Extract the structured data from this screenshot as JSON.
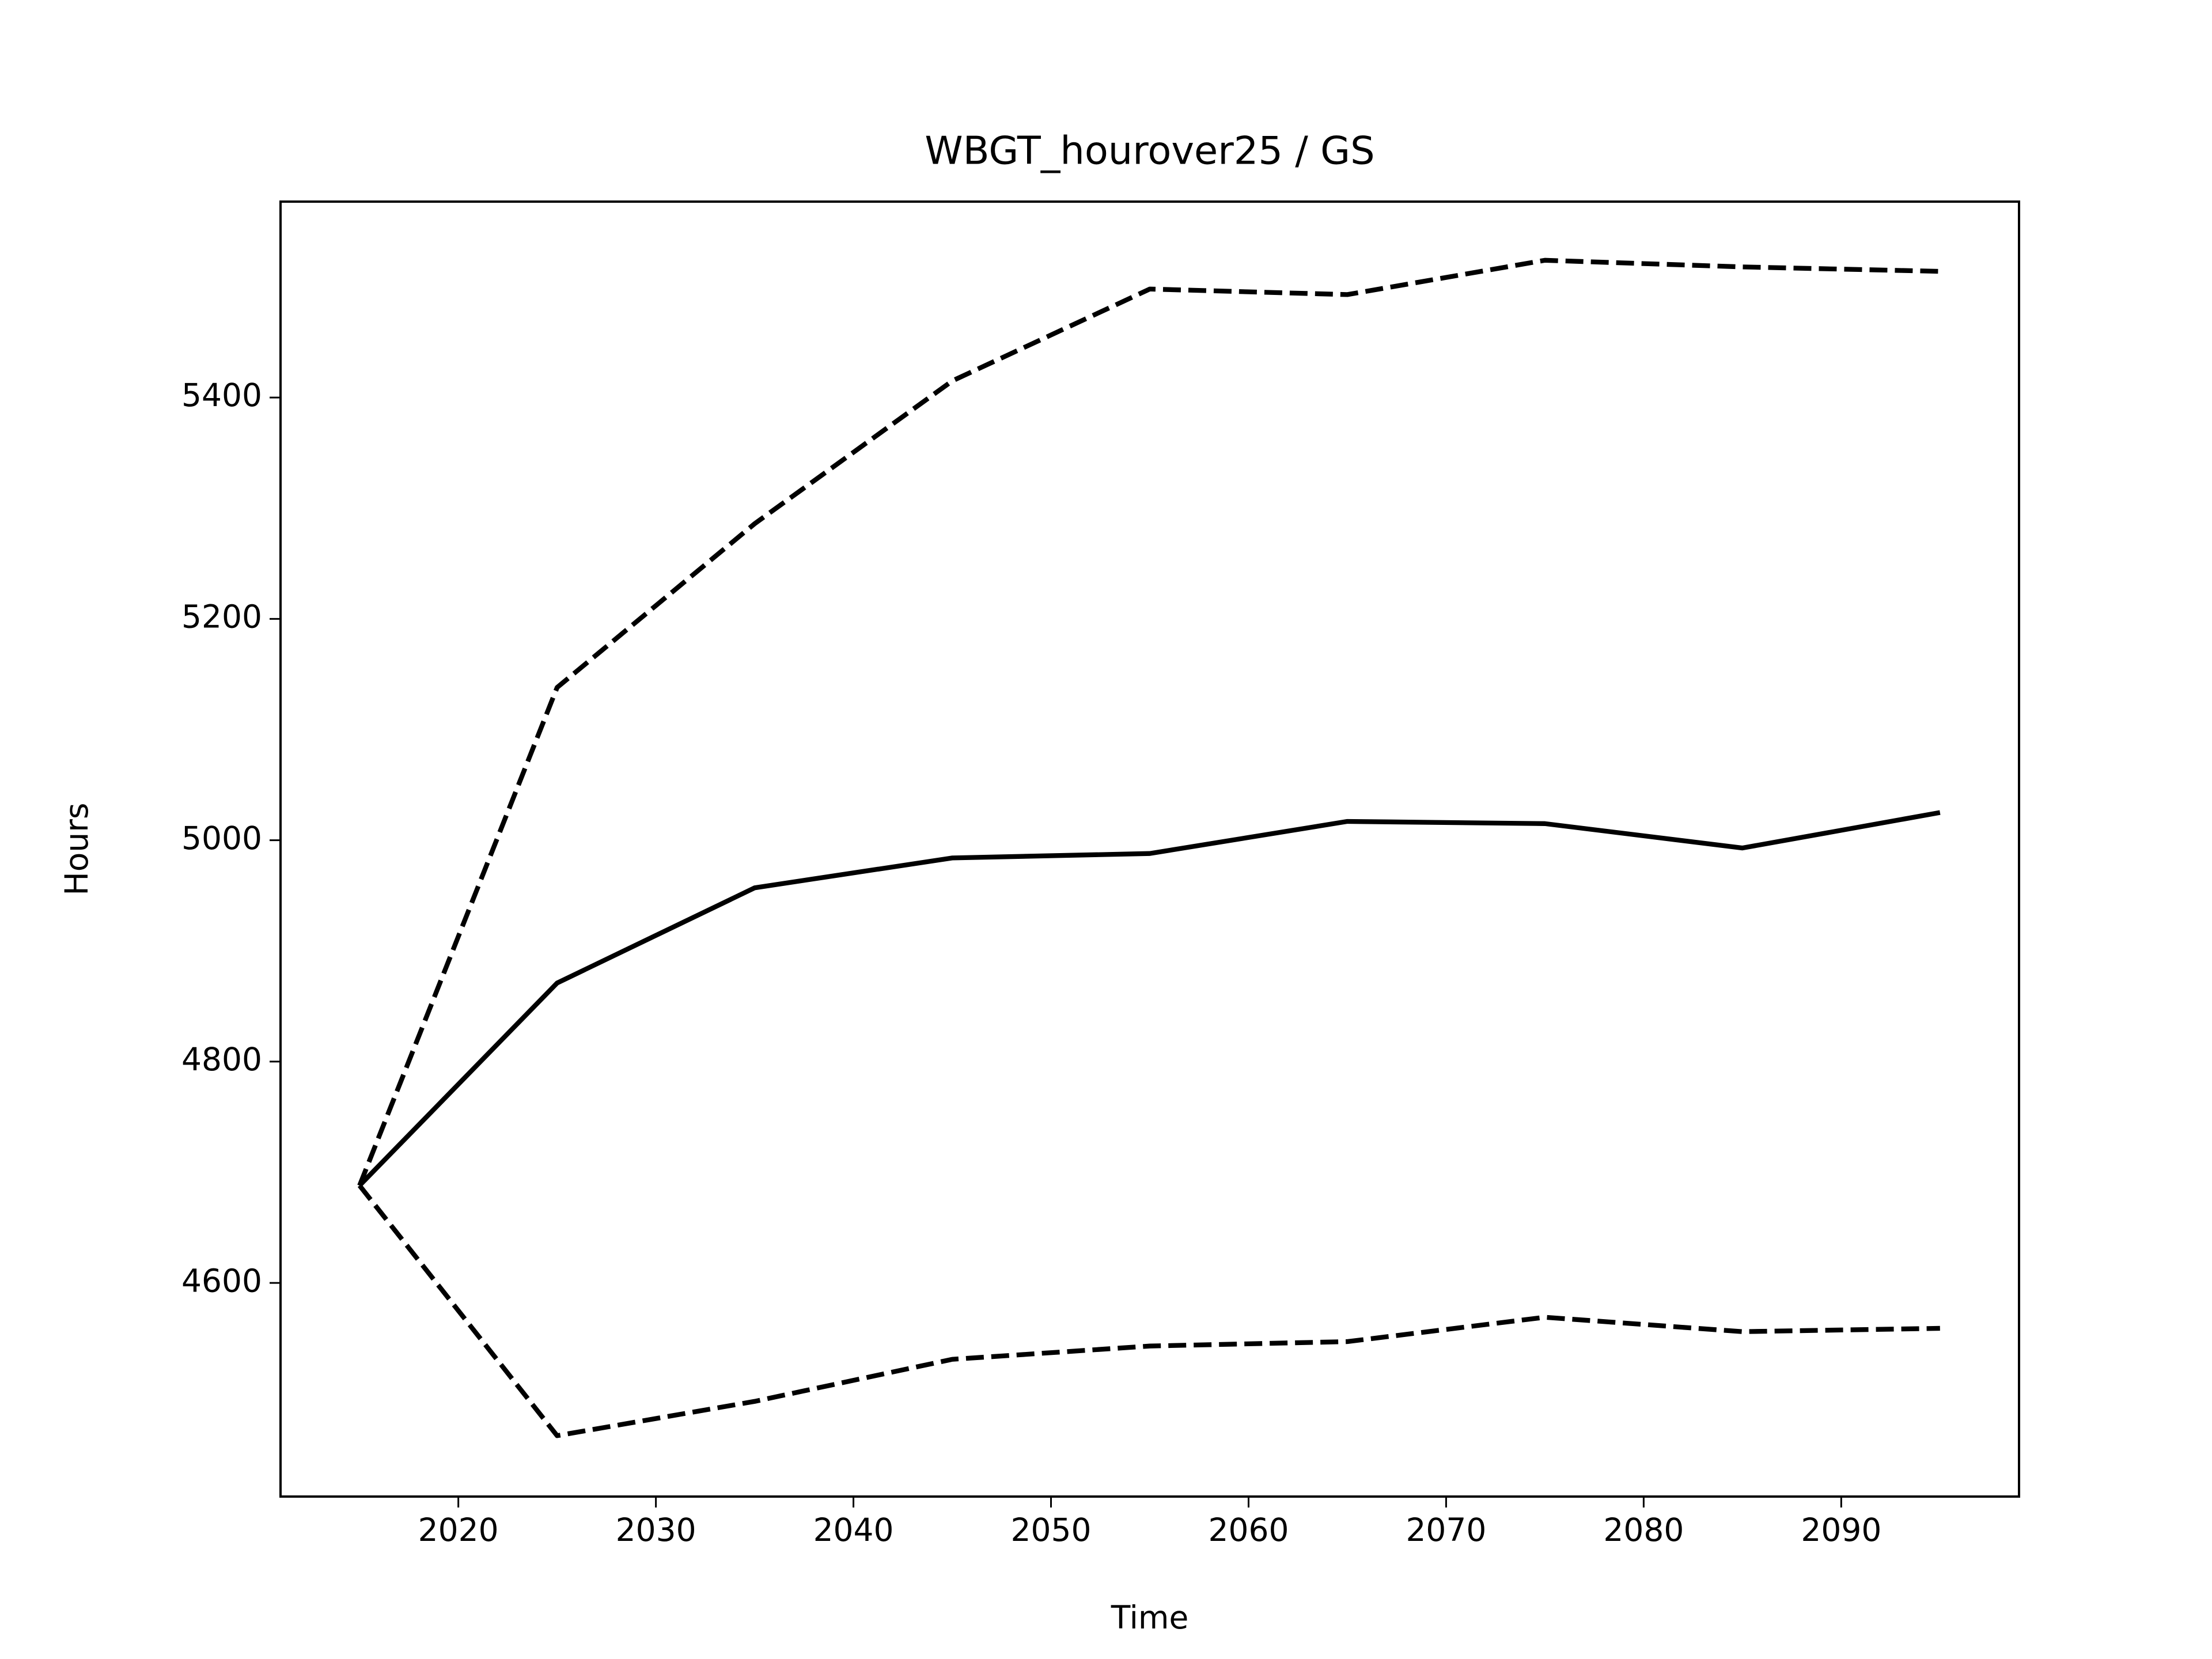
{
  "chart_data": {
    "type": "line",
    "title": "WBGT_hourover25 / GS",
    "x_label": "Time",
    "y_label": "Hours",
    "x": [
      2015,
      2025,
      2035,
      2045,
      2055,
      2065,
      2075,
      2085,
      2095
    ],
    "series": [
      {
        "color": "#000000",
        "style": "solid",
        "values": [
          4688,
          4871,
          4957,
          4984,
          4988,
          5017,
          5015,
          4993,
          5025
        ]
      },
      {
        "color": "#000000",
        "style": "dashed",
        "values": [
          4688,
          5138,
          5286,
          5415,
          5498,
          5493,
          5524,
          5518,
          5514
        ]
      },
      {
        "color": "#000000",
        "style": "dashed",
        "values": [
          4688,
          4462,
          4493,
          4531,
          4543,
          4547,
          4569,
          4556,
          4559
        ]
      }
    ],
    "xlim": [
      2011,
      2099
    ],
    "xticks": [
      2020,
      2030,
      2040,
      2050,
      2060,
      2070,
      2080,
      2090
    ],
    "ylim": [
      4407,
      5577
    ],
    "yticks": [
      4600,
      4800,
      5000,
      5200,
      5400
    ],
    "grid": false
  }
}
